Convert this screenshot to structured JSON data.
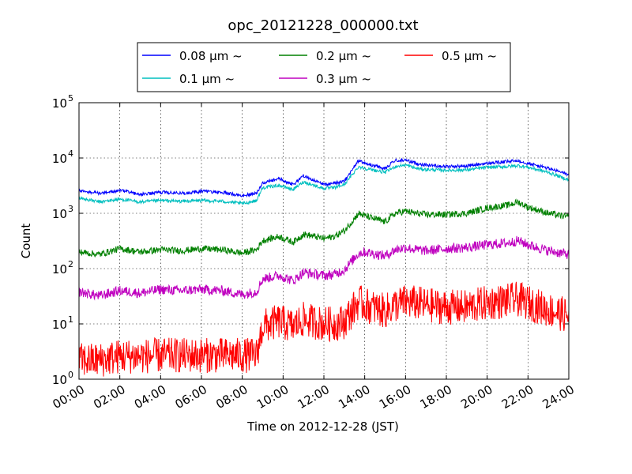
{
  "chart_data": {
    "type": "line",
    "title": "opc_20121228_000000.txt",
    "xlabel": "Time on 2012-12-28 (JST)",
    "ylabel": "Count",
    "y_scale": "log",
    "ylim": [
      1,
      100000
    ],
    "xlim": [
      0,
      24
    ],
    "x_tick_labels": [
      "00:00",
      "02:00",
      "04:00",
      "06:00",
      "08:00",
      "10:00",
      "12:00",
      "14:00",
      "16:00",
      "18:00",
      "20:00",
      "22:00",
      "24:00"
    ],
    "y_ticks": [
      {
        "base": "10",
        "exp": "0",
        "value": 1
      },
      {
        "base": "10",
        "exp": "1",
        "value": 10
      },
      {
        "base": "10",
        "exp": "2",
        "value": 100
      },
      {
        "base": "10",
        "exp": "3",
        "value": 1000
      },
      {
        "base": "10",
        "exp": "4",
        "value": 10000
      },
      {
        "base": "10",
        "exp": "5",
        "value": 100000
      }
    ],
    "grid": true,
    "legend_position": "top-center",
    "x": [
      0,
      1,
      2,
      3,
      4,
      5,
      6,
      7,
      8,
      8.7,
      9,
      9.8,
      10.5,
      11,
      12,
      12.5,
      13,
      13.7,
      14,
      15,
      15.5,
      16,
      16.5,
      17,
      18,
      19,
      20,
      21,
      21.5,
      22,
      23,
      24
    ],
    "series": [
      {
        "name": "0.08 μm ~",
        "color": "#0000ff",
        "noise": 0.03,
        "values": [
          2600,
          2300,
          2600,
          2200,
          2400,
          2300,
          2500,
          2400,
          2100,
          2300,
          3500,
          4200,
          3300,
          4800,
          3300,
          3500,
          3800,
          9000,
          8000,
          6500,
          9000,
          9200,
          8000,
          7500,
          7000,
          7200,
          8000,
          8600,
          9000,
          8000,
          6500,
          5000
        ]
      },
      {
        "name": "0.1 μm ~",
        "color": "#00bfbf",
        "noise": 0.03,
        "values": [
          1900,
          1600,
          1800,
          1600,
          1700,
          1650,
          1700,
          1650,
          1500,
          1700,
          2900,
          3200,
          2700,
          3700,
          2800,
          2900,
          3300,
          7000,
          6500,
          5500,
          7000,
          7500,
          6500,
          6200,
          6000,
          6100,
          6800,
          7000,
          7300,
          6800,
          5500,
          4000
        ]
      },
      {
        "name": "0.2 μm ~",
        "color": "#008000",
        "noise": 0.06,
        "values": [
          200,
          180,
          230,
          200,
          220,
          210,
          230,
          220,
          190,
          220,
          320,
          380,
          300,
          420,
          350,
          380,
          480,
          1000,
          900,
          700,
          1000,
          1100,
          1000,
          950,
          950,
          1000,
          1250,
          1400,
          1600,
          1300,
          1000,
          850
        ]
      },
      {
        "name": "0.3 μm ~",
        "color": "#bf00bf",
        "noise": 0.09,
        "values": [
          38,
          32,
          40,
          36,
          42,
          40,
          42,
          40,
          34,
          38,
          65,
          75,
          60,
          85,
          75,
          78,
          95,
          190,
          200,
          170,
          220,
          240,
          220,
          210,
          230,
          240,
          270,
          290,
          320,
          270,
          210,
          180
        ]
      },
      {
        "name": "0.5 μm ~",
        "color": "#ff0000",
        "noise": 0.32,
        "values": [
          2.2,
          2.2,
          2.6,
          2.6,
          2.7,
          2.7,
          2.7,
          2.7,
          2.7,
          2.7,
          9,
          11,
          9,
          12,
          10,
          10,
          11,
          25,
          22,
          17,
          22,
          25,
          24,
          22,
          20,
          20,
          24,
          26,
          28,
          24,
          18,
          14
        ]
      }
    ]
  }
}
